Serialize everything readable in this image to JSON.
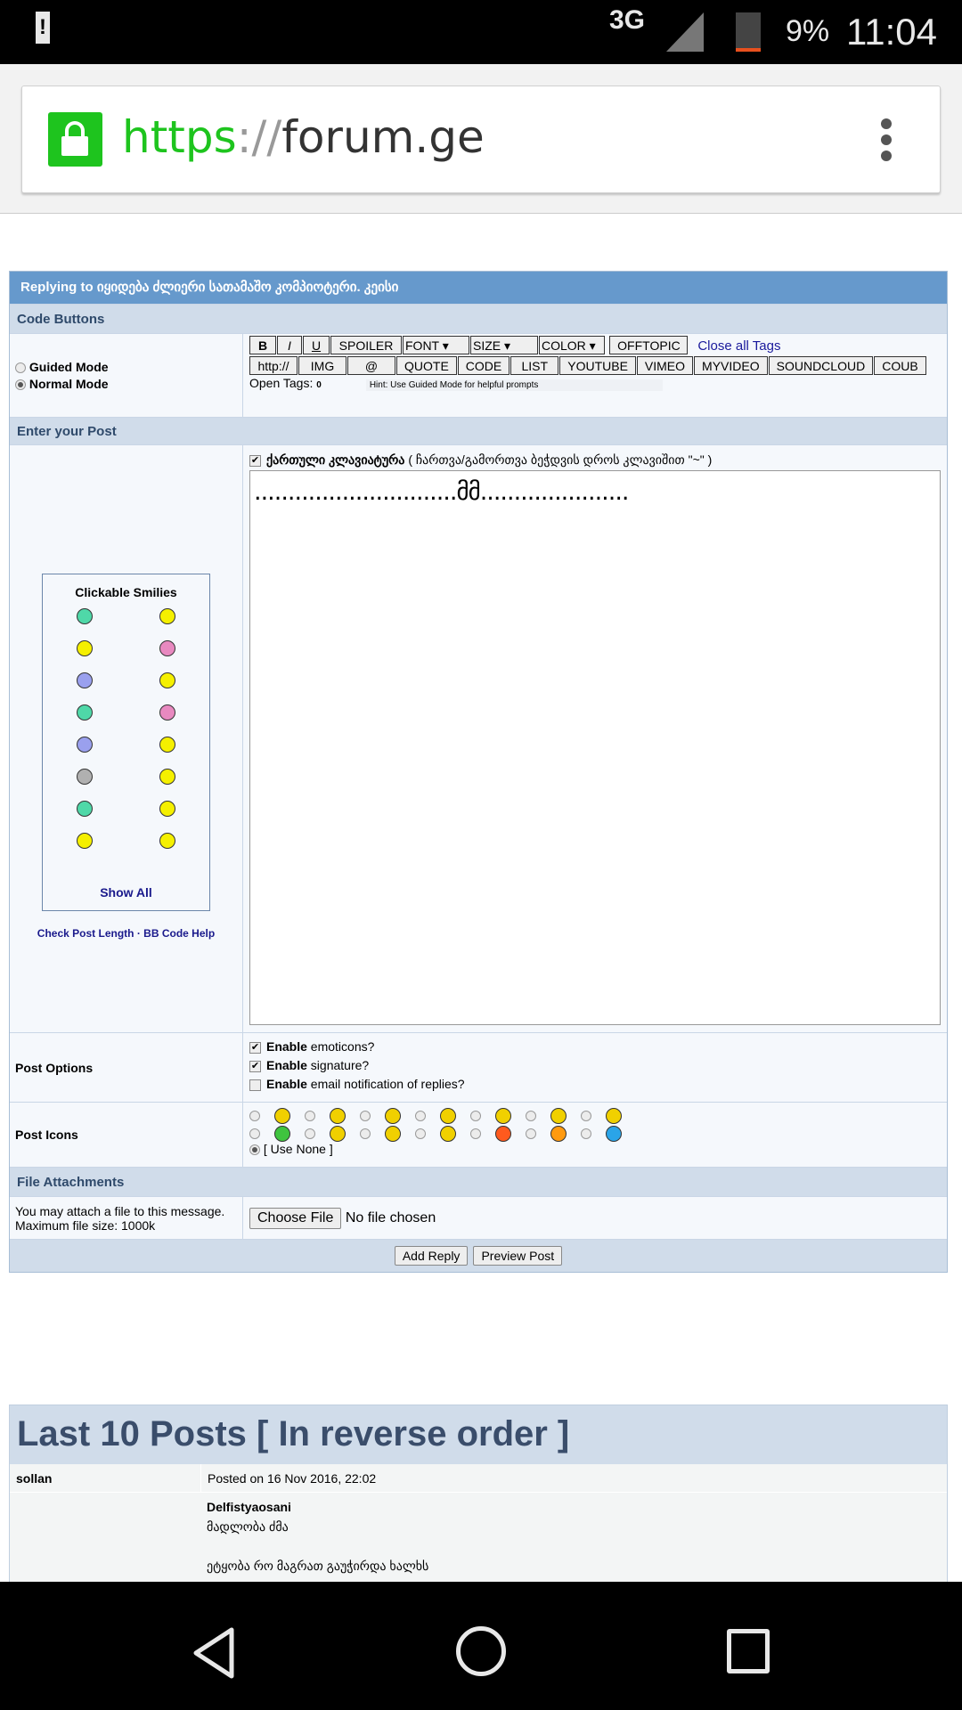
{
  "status_bar": {
    "network": "3G",
    "battery": "9%",
    "time": "11:04",
    "colors": {
      "battery_low": "#e8501e"
    }
  },
  "browser": {
    "url_scheme": "https",
    "url_sep": "://",
    "url_host": "forum.ge",
    "colors": {
      "secure": "#1ec41e"
    }
  },
  "form": {
    "title": "Replying to იყიდება ძლიერი სათამაშო კომპიოტერი. კეისი",
    "code_buttons_header": "Code Buttons",
    "modes": [
      {
        "label": "Guided Mode",
        "selected": false
      },
      {
        "label": "Normal Mode",
        "selected": true
      }
    ],
    "buttons_row1": [
      "B",
      "I",
      "U",
      "SPOILER"
    ],
    "dropdowns": [
      "FONT",
      "SIZE",
      "COLOR"
    ],
    "offtopic": "OFFTOPIC",
    "close_all_tags": "Close all Tags",
    "buttons_row2": [
      "http://",
      "IMG",
      "@",
      "QUOTE",
      "CODE",
      "LIST",
      "YOUTUBE",
      "VIMEO",
      "MYVIDEO",
      "SOUNDCLOUD",
      "COUB"
    ],
    "open_tags_label": "Open Tags:",
    "open_tags_value": "0",
    "hint": "Hint: Use Guided Mode for helpful prompts",
    "enter_post_header": "Enter your Post",
    "smilies_title": "Clickable Smilies",
    "smilies": [
      "#4fd8a8",
      "#f5f000",
      "#f5f000",
      "#e889c0",
      "#9aa0ee",
      "#f5f000",
      "#4fd8a8",
      "#e889c0",
      "#9aa0ee",
      "#f5f000",
      "#b0b0b0",
      "#f5f000",
      "#4fd8a8",
      "#f5f000",
      "#f5f000",
      "#f5f000"
    ],
    "show_all": "Show All",
    "check_length": "Check Post Length",
    "bb_help": "BB Code Help",
    "link_sep": "·",
    "keyboard_label": "ქართული კლავიატურა",
    "keyboard_checked": true,
    "keyboard_hint": "( ჩართვა/გამორთვა ბეჭდვის დროს კლავიშით \"~\" )",
    "message": "..............................მმ......................",
    "post_options_label": "Post Options",
    "options": [
      {
        "bold": "Enable",
        "text": "emoticons?",
        "checked": true
      },
      {
        "bold": "Enable",
        "text": "signature?",
        "checked": true
      },
      {
        "bold": "Enable",
        "text": "email notification of replies?",
        "checked": false
      }
    ],
    "post_icons_label": "Post Icons",
    "post_icons": [
      "#f0d000",
      "#f0d000",
      "#f0d000",
      "#f0d000",
      "#f0d000",
      "#f0d000",
      "#f0d000",
      "#3fc43f",
      "#f0d000",
      "#f0d000",
      "#f0d000",
      "#ff5a1e",
      "#ff9a10",
      "#2aa4e8"
    ],
    "use_none": "[ Use None ]",
    "file_header": "File Attachments",
    "file_note1": "You may attach a file to this message.",
    "file_note2": "Maximum file size: 1000k",
    "choose_file": "Choose File",
    "no_file": "No file chosen",
    "add_reply": "Add Reply",
    "preview": "Preview Post"
  },
  "last_posts": {
    "title": "Last 10 Posts [ In reverse order ]",
    "posts": [
      {
        "author": "sollan",
        "posted": "Posted on 16 Nov 2016, 22:02",
        "quote_author": "Delfistyaosani",
        "lines": [
          "მადლობა ძმა",
          "",
          "ეტყობა რო მაგრათ გაუჭირდა ხალხს"
        ]
      }
    ]
  }
}
